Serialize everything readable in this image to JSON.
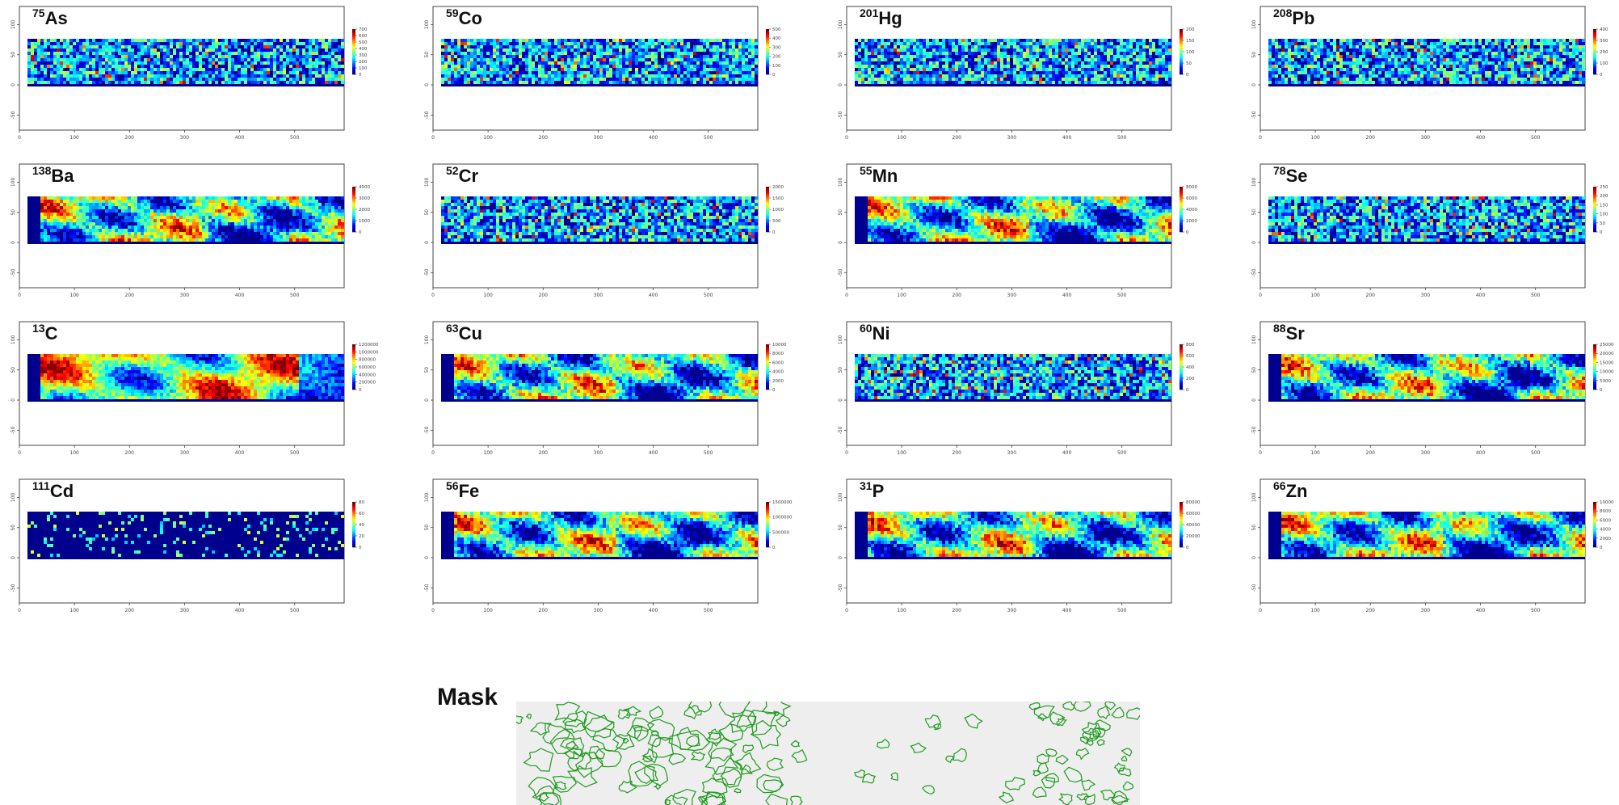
{
  "chart_data": [
    {
      "type": "heatmap",
      "isotope": "75",
      "element": "As",
      "palette": "noise",
      "colorbar_ticks": [
        "700",
        "600",
        "500",
        "400",
        "300",
        "200",
        "100",
        "0"
      ],
      "xticks": [
        "0",
        "100",
        "200",
        "300",
        "400",
        "500"
      ],
      "yticks": [
        "100",
        "50",
        "0",
        "-50"
      ],
      "x_range": [
        0,
        590
      ],
      "y_range": [
        -75,
        130
      ]
    },
    {
      "type": "heatmap",
      "isotope": "59",
      "element": "Co",
      "palette": "noise",
      "colorbar_ticks": [
        "500",
        "400",
        "300",
        "200",
        "100",
        "0"
      ],
      "xticks": [
        "0",
        "100",
        "200",
        "300",
        "400",
        "500"
      ],
      "yticks": [
        "100",
        "50",
        "0",
        "-50"
      ],
      "x_range": [
        0,
        590
      ],
      "y_range": [
        -75,
        130
      ]
    },
    {
      "type": "heatmap",
      "isotope": "201",
      "element": "Hg",
      "palette": "noise",
      "colorbar_ticks": [
        "200",
        "150",
        "100",
        "50",
        "0"
      ],
      "xticks": [
        "0",
        "100",
        "200",
        "300",
        "400",
        "500"
      ],
      "yticks": [
        "100",
        "50",
        "0",
        "-50"
      ],
      "x_range": [
        0,
        590
      ],
      "y_range": [
        -75,
        130
      ]
    },
    {
      "type": "heatmap",
      "isotope": "208",
      "element": "Pb",
      "palette": "noise",
      "colorbar_ticks": [
        "400",
        "300",
        "200",
        "100",
        "0"
      ],
      "xticks": [
        "0",
        "100",
        "200",
        "300",
        "400",
        "500"
      ],
      "yticks": [
        "100",
        "50",
        "0",
        "-50"
      ],
      "x_range": [
        0,
        590
      ],
      "y_range": [
        -75,
        130
      ]
    },
    {
      "type": "heatmap",
      "isotope": "138",
      "element": "Ba",
      "palette": "structured",
      "colorbar_ticks": [
        "4000",
        "3000",
        "2000",
        "1000",
        "0"
      ],
      "xticks": [
        "0",
        "100",
        "200",
        "300",
        "400",
        "500"
      ],
      "yticks": [
        "100",
        "50",
        "0",
        "-50"
      ],
      "x_range": [
        0,
        590
      ],
      "y_range": [
        -75,
        130
      ]
    },
    {
      "type": "heatmap",
      "isotope": "52",
      "element": "Cr",
      "palette": "noise",
      "colorbar_ticks": [
        "2000",
        "1500",
        "1000",
        "500",
        "0"
      ],
      "xticks": [
        "0",
        "100",
        "200",
        "300",
        "400",
        "500"
      ],
      "yticks": [
        "100",
        "50",
        "0",
        "-50"
      ],
      "x_range": [
        0,
        590
      ],
      "y_range": [
        -75,
        130
      ]
    },
    {
      "type": "heatmap",
      "isotope": "55",
      "element": "Mn",
      "palette": "structured",
      "colorbar_ticks": [
        "8000",
        "6000",
        "4000",
        "2000",
        "0"
      ],
      "xticks": [
        "0",
        "100",
        "200",
        "300",
        "400",
        "500"
      ],
      "yticks": [
        "100",
        "50",
        "0",
        "-50"
      ],
      "x_range": [
        0,
        590
      ],
      "y_range": [
        -75,
        130
      ]
    },
    {
      "type": "heatmap",
      "isotope": "78",
      "element": "Se",
      "palette": "noise",
      "colorbar_ticks": [
        "250",
        "200",
        "150",
        "100",
        "50",
        "0"
      ],
      "xticks": [
        "0",
        "100",
        "200",
        "300",
        "400",
        "500"
      ],
      "yticks": [
        "100",
        "50",
        "0",
        "-50"
      ],
      "x_range": [
        0,
        590
      ],
      "y_range": [
        -75,
        130
      ]
    },
    {
      "type": "heatmap",
      "isotope": "13",
      "element": "C",
      "palette": "hot",
      "colorbar_ticks": [
        "1200000",
        "1000000",
        "800000",
        "600000",
        "400000",
        "200000",
        "0"
      ],
      "xticks": [
        "0",
        "100",
        "200",
        "300",
        "400",
        "500"
      ],
      "yticks": [
        "100",
        "50",
        "0",
        "-50"
      ],
      "x_range": [
        0,
        590
      ],
      "y_range": [
        -75,
        130
      ]
    },
    {
      "type": "heatmap",
      "isotope": "63",
      "element": "Cu",
      "palette": "structured",
      "colorbar_ticks": [
        "10000",
        "8000",
        "6000",
        "4000",
        "2000",
        "0"
      ],
      "xticks": [
        "0",
        "100",
        "200",
        "300",
        "400",
        "500"
      ],
      "yticks": [
        "100",
        "50",
        "0",
        "-50"
      ],
      "x_range": [
        0,
        590
      ],
      "y_range": [
        -75,
        130
      ]
    },
    {
      "type": "heatmap",
      "isotope": "60",
      "element": "Ni",
      "palette": "noise",
      "colorbar_ticks": [
        "800",
        "600",
        "400",
        "200",
        "0"
      ],
      "xticks": [
        "0",
        "100",
        "200",
        "300",
        "400",
        "500"
      ],
      "yticks": [
        "100",
        "50",
        "0",
        "-50"
      ],
      "x_range": [
        0,
        590
      ],
      "y_range": [
        -75,
        130
      ]
    },
    {
      "type": "heatmap",
      "isotope": "88",
      "element": "Sr",
      "palette": "structured",
      "colorbar_ticks": [
        "25000",
        "20000",
        "15000",
        "10000",
        "5000",
        "0"
      ],
      "xticks": [
        "0",
        "100",
        "200",
        "300",
        "400",
        "500"
      ],
      "yticks": [
        "100",
        "50",
        "0",
        "-50"
      ],
      "x_range": [
        0,
        590
      ],
      "y_range": [
        -75,
        130
      ]
    },
    {
      "type": "heatmap",
      "isotope": "111",
      "element": "Cd",
      "palette": "sparse",
      "colorbar_ticks": [
        "80",
        "60",
        "40",
        "20",
        "0"
      ],
      "xticks": [
        "0",
        "100",
        "200",
        "300",
        "400",
        "500"
      ],
      "yticks": [
        "100",
        "50",
        "0",
        "-50"
      ],
      "x_range": [
        0,
        590
      ],
      "y_range": [
        -75,
        130
      ]
    },
    {
      "type": "heatmap",
      "isotope": "56",
      "element": "Fe",
      "palette": "structured",
      "colorbar_ticks": [
        "1500000",
        "1000000",
        "500000",
        "0"
      ],
      "xticks": [
        "0",
        "100",
        "200",
        "300",
        "400",
        "500"
      ],
      "yticks": [
        "100",
        "50",
        "0",
        "-50"
      ],
      "x_range": [
        0,
        590
      ],
      "y_range": [
        -75,
        130
      ]
    },
    {
      "type": "heatmap",
      "isotope": "31",
      "element": "P",
      "palette": "structured",
      "colorbar_ticks": [
        "80000",
        "60000",
        "40000",
        "20000",
        "0"
      ],
      "xticks": [
        "0",
        "100",
        "200",
        "300",
        "400",
        "500"
      ],
      "yticks": [
        "100",
        "50",
        "0",
        "-50"
      ],
      "x_range": [
        0,
        590
      ],
      "y_range": [
        -75,
        130
      ]
    },
    {
      "type": "heatmap",
      "isotope": "66",
      "element": "Zn",
      "palette": "structured",
      "colorbar_ticks": [
        "10000",
        "8000",
        "6000",
        "4000",
        "2000",
        "0"
      ],
      "xticks": [
        "0",
        "100",
        "200",
        "300",
        "400",
        "500"
      ],
      "yticks": [
        "100",
        "50",
        "0",
        "-50"
      ],
      "x_range": [
        0,
        590
      ],
      "y_range": [
        -75,
        130
      ]
    }
  ],
  "mask": {
    "title": "Mask",
    "background_color": "#eeeeee",
    "contour_color": "#1f9a1f"
  },
  "colors": {
    "jet_low": "#00007f",
    "jet_blue": "#0000ff",
    "jet_cyan": "#00ffff",
    "jet_yellow": "#ffff00",
    "jet_red": "#ff0000",
    "jet_high": "#7f0000"
  }
}
